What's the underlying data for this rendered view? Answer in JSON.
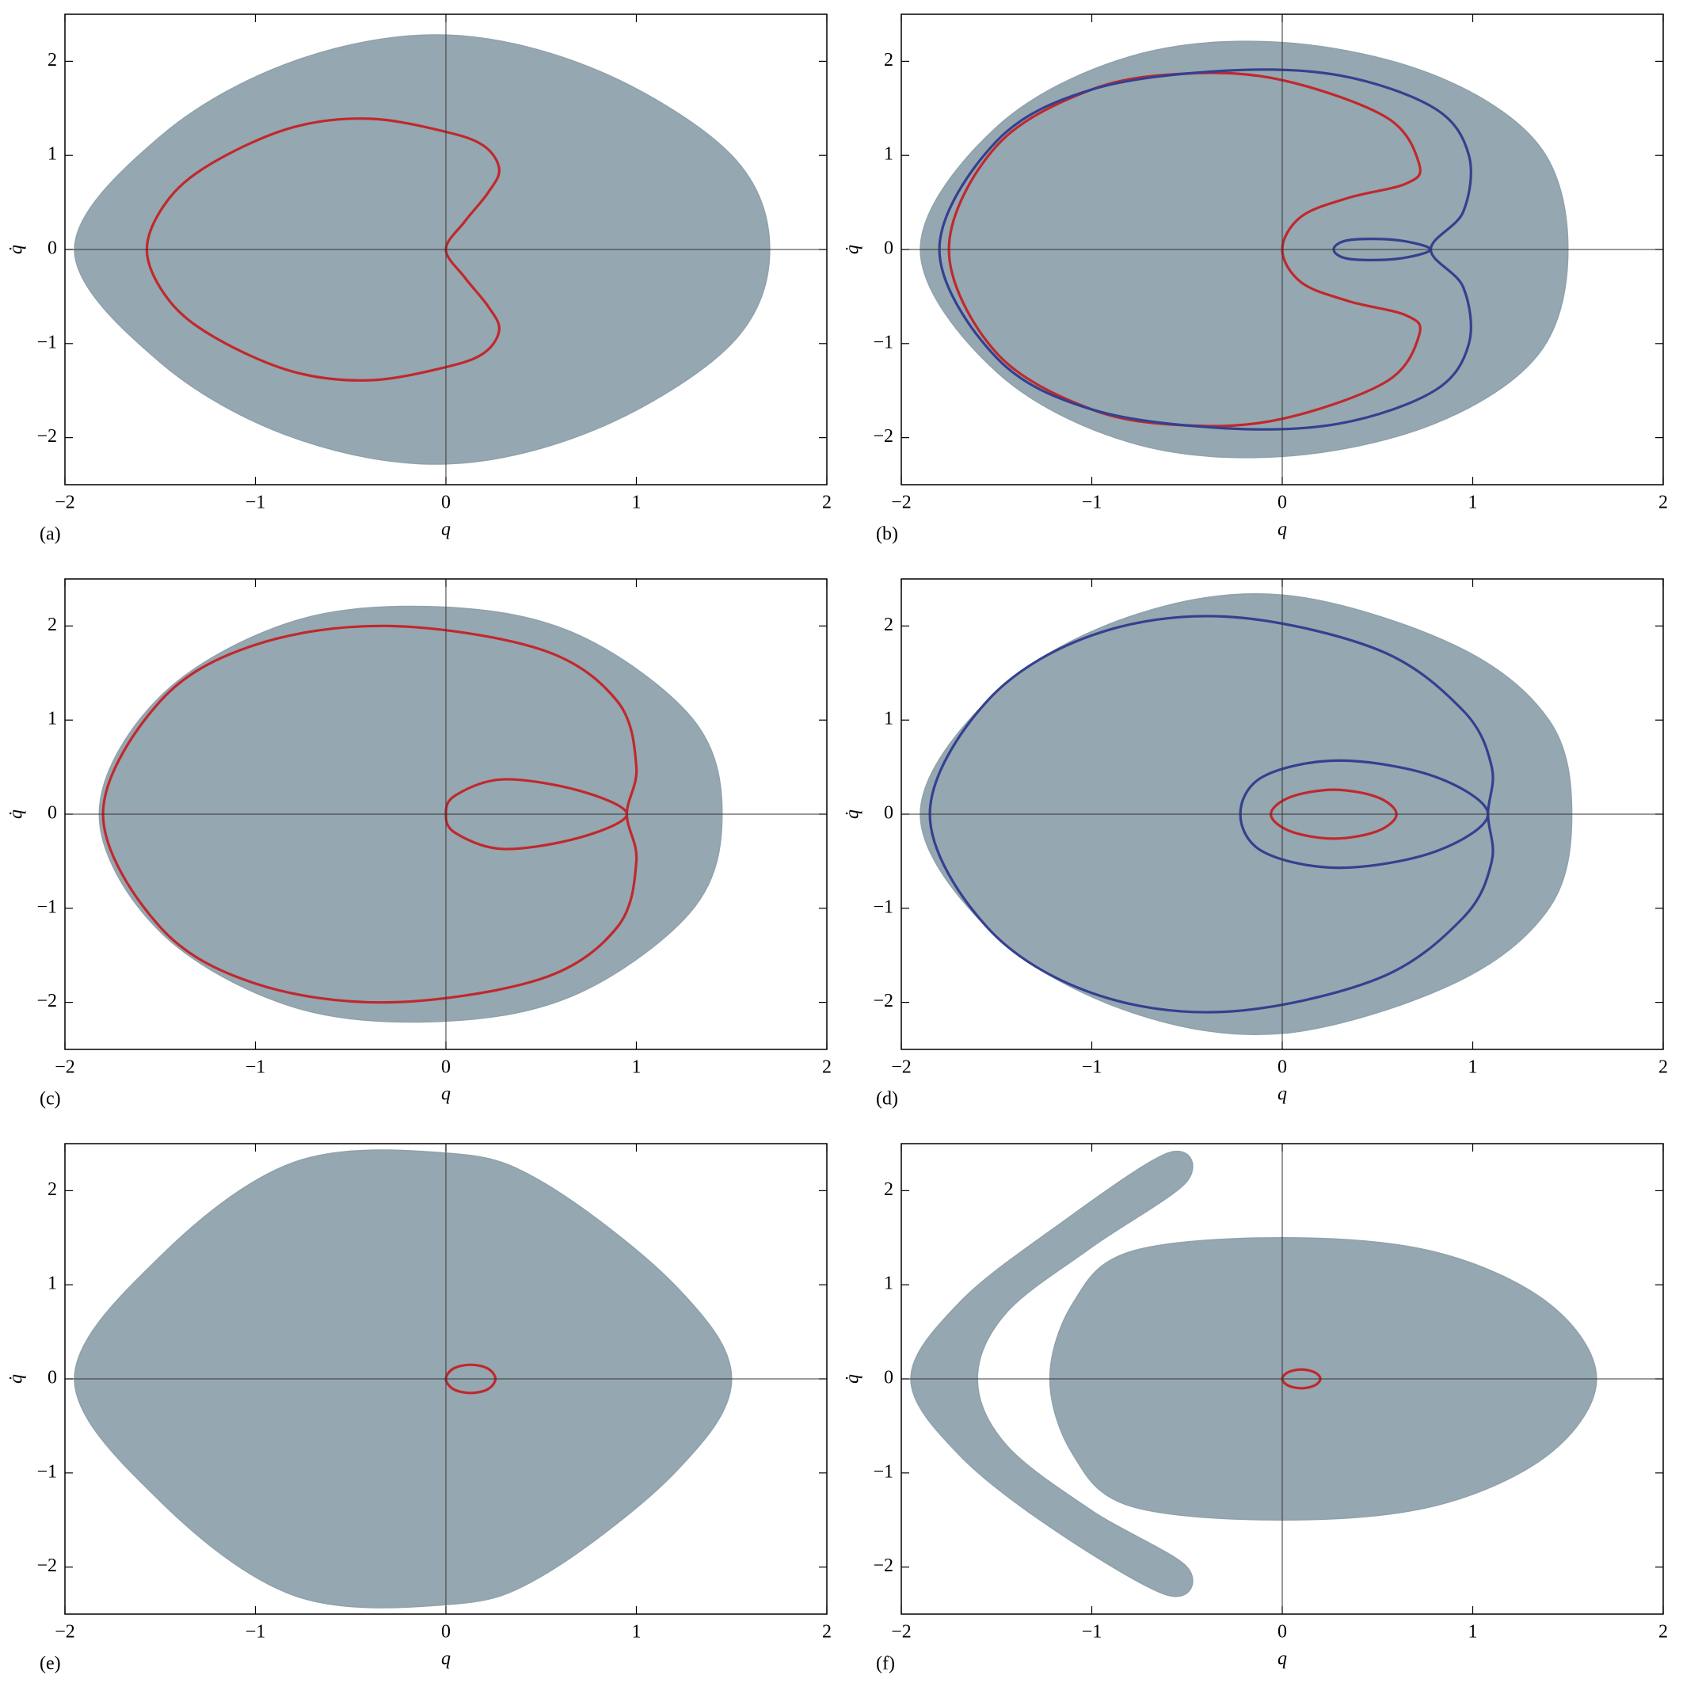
{
  "chart_data": [
    {
      "type": "line",
      "panel_label": "(a)",
      "x_label": "q",
      "y_label": "q̇",
      "xlim": [
        -2,
        2
      ],
      "ylim": [
        -2.5,
        2.5
      ],
      "xticks": [
        {
          "value": -2,
          "label": "−2"
        },
        {
          "value": -1,
          "label": "−1"
        },
        0,
        1,
        2
      ],
      "yticks": [
        {
          "value": -2,
          "label": "−2"
        },
        {
          "value": -1,
          "label": "−1"
        },
        0,
        1,
        2
      ],
      "series": [
        {
          "color": "#8fa2ac",
          "fill": true,
          "x": [
            1.7,
            1.5,
            0.8,
            0,
            -0.8,
            -1.5,
            -1.95,
            -1.5,
            -0.8,
            0,
            0.8,
            1.5,
            1.7
          ],
          "values": [
            0,
            1.0,
            1.9,
            2.28,
            2.0,
            1.2,
            0,
            -1.2,
            -2.0,
            -2.28,
            -1.9,
            -1.0,
            0
          ]
        },
        {
          "color": "#c0282d",
          "x": [
            0,
            0.1,
            0.22,
            0.28,
            0.2,
            0,
            -0.4,
            -0.8,
            -1.2,
            -1.45,
            -1.57,
            -1.45,
            -1.2,
            -0.8,
            -0.4,
            0,
            0.2,
            0.28,
            0.22,
            0.1,
            0
          ],
          "values": [
            0,
            0.3,
            0.6,
            0.85,
            1.1,
            1.25,
            1.39,
            1.3,
            0.95,
            0.55,
            0,
            -0.55,
            -0.95,
            -1.3,
            -1.39,
            -1.25,
            -1.1,
            -0.85,
            -0.6,
            -0.3,
            0
          ]
        }
      ]
    },
    {
      "type": "line",
      "panel_label": "(b)",
      "x_label": "q",
      "y_label": "q̇",
      "xlim": [
        -2,
        2
      ],
      "ylim": [
        -2.5,
        2.5
      ],
      "xticks": [
        {
          "value": -2,
          "label": "−2"
        },
        {
          "value": -1,
          "label": "−1"
        },
        0,
        1,
        2
      ],
      "yticks": [
        {
          "value": -2,
          "label": "−2"
        },
        {
          "value": -1,
          "label": "−1"
        },
        0,
        1,
        2
      ],
      "series": [
        {
          "color": "#8fa2ac",
          "fill": true,
          "x": [
            1.5,
            1.35,
            0.8,
            0,
            -0.8,
            -1.5,
            -1.9,
            -1.5,
            -0.8,
            0,
            0.8,
            1.35,
            1.5
          ],
          "values": [
            0,
            1.1,
            1.85,
            2.2,
            2.05,
            1.3,
            0,
            -1.3,
            -2.05,
            -2.2,
            -1.85,
            -1.1,
            0
          ]
        },
        {
          "color": "#c0282d",
          "x": [
            0,
            0.1,
            0.35,
            0.65,
            0.72,
            0.55,
            0,
            -0.5,
            -1.0,
            -1.5,
            -1.75,
            -1.5,
            -1.0,
            -0.5,
            0,
            0.55,
            0.72,
            0.65,
            0.35,
            0.1,
            0
          ],
          "values": [
            0,
            0.35,
            0.55,
            0.7,
            0.9,
            1.4,
            1.8,
            1.87,
            1.7,
            1.1,
            0,
            -1.1,
            -1.7,
            -1.87,
            -1.8,
            -1.4,
            -0.9,
            -0.7,
            -0.55,
            -0.35,
            0
          ]
        },
        {
          "color": "#34408f",
          "x": [
            0.78,
            0.95,
            0.98,
            0.8,
            0.3,
            -0.3,
            -1.0,
            -1.5,
            -1.8,
            -1.5,
            -1.0,
            -0.3,
            0.3,
            0.8,
            0.98,
            0.95,
            0.78
          ],
          "values": [
            0,
            0.4,
            1.0,
            1.5,
            1.85,
            1.9,
            1.7,
            1.15,
            0,
            -1.15,
            -1.7,
            -1.9,
            -1.85,
            -1.5,
            -1.0,
            -0.4,
            0
          ]
        },
        {
          "color": "#34408f",
          "x": [
            0.78,
            0.6,
            0.35,
            0.27,
            0.35,
            0.6,
            0.78
          ],
          "values": [
            0,
            0.1,
            0.1,
            0,
            -0.1,
            -0.1,
            0
          ]
        }
      ]
    },
    {
      "type": "line",
      "panel_label": "(c)",
      "x_label": "q",
      "y_label": "q̇",
      "xlim": [
        -2,
        2
      ],
      "ylim": [
        -2.5,
        2.5
      ],
      "xticks": [
        {
          "value": -2,
          "label": "−2"
        },
        {
          "value": -1,
          "label": "−1"
        },
        0,
        1,
        2
      ],
      "yticks": [
        {
          "value": -2,
          "label": "−2"
        },
        {
          "value": -1,
          "label": "−1"
        },
        0,
        1,
        2
      ],
      "series": [
        {
          "color": "#8fa2ac",
          "fill": true,
          "x": [
            1.45,
            1.3,
            0.7,
            0,
            -0.8,
            -1.5,
            -1.82,
            -1.5,
            -0.8,
            0,
            0.7,
            1.3,
            1.45
          ],
          "values": [
            0,
            1.0,
            1.9,
            2.2,
            2.05,
            1.25,
            0,
            -1.25,
            -2.05,
            -2.2,
            -1.9,
            -1.0,
            0
          ]
        },
        {
          "color": "#c0282d",
          "x": [
            0.95,
            1.0,
            0.9,
            0.5,
            -0.3,
            -1.0,
            -1.5,
            -1.8,
            -1.5,
            -1.0,
            -0.3,
            0.5,
            0.9,
            1.0,
            0.95
          ],
          "values": [
            0,
            0.5,
            1.2,
            1.75,
            2.0,
            1.8,
            1.2,
            0,
            -1.2,
            -1.8,
            -2.0,
            -1.75,
            -1.2,
            -0.5,
            0
          ]
        },
        {
          "color": "#c0282d",
          "x": [
            0.95,
            0.7,
            0.3,
            0.05,
            0,
            0.05,
            0.3,
            0.7,
            0.95
          ],
          "values": [
            0,
            0.25,
            0.37,
            0.2,
            0,
            -0.2,
            -0.37,
            -0.25,
            0
          ]
        }
      ]
    },
    {
      "type": "line",
      "panel_label": "(d)",
      "x_label": "q",
      "y_label": "q̇",
      "xlim": [
        -2,
        2
      ],
      "ylim": [
        -2.5,
        2.5
      ],
      "xticks": [
        {
          "value": -2,
          "label": "−2"
        },
        {
          "value": -1,
          "label": "−1"
        },
        0,
        1,
        2
      ],
      "yticks": [
        {
          "value": -2,
          "label": "−2"
        },
        {
          "value": -1,
          "label": "−1"
        },
        0,
        1,
        2
      ],
      "series": [
        {
          "color": "#8fa2ac",
          "fill": true,
          "x": [
            1.52,
            1.4,
            0.9,
            0,
            -0.8,
            -1.5,
            -1.9,
            -1.5,
            -0.8,
            0,
            0.9,
            1.4,
            1.52
          ],
          "values": [
            0,
            1.0,
            1.8,
            2.33,
            2.1,
            1.3,
            0,
            -1.3,
            -2.1,
            -2.33,
            -1.8,
            -1.0,
            0
          ]
        },
        {
          "color": "#34408f",
          "x": [
            1.08,
            1.1,
            0.95,
            0.5,
            -0.3,
            -1.0,
            -1.55,
            -1.85,
            -1.55,
            -1.0,
            -0.3,
            0.5,
            0.95,
            1.1,
            1.08
          ],
          "values": [
            0,
            0.5,
            1.1,
            1.75,
            2.1,
            1.9,
            1.2,
            0,
            -1.2,
            -1.9,
            -2.1,
            -1.75,
            -1.1,
            -0.5,
            0
          ]
        },
        {
          "color": "#34408f",
          "x": [
            1.08,
            0.8,
            0.3,
            -0.1,
            -0.22,
            -0.1,
            0.3,
            0.8,
            1.08
          ],
          "values": [
            0,
            0.4,
            0.57,
            0.4,
            0,
            -0.4,
            -0.57,
            -0.4,
            0
          ]
        },
        {
          "color": "#c0282d",
          "x": [
            0.6,
            0.5,
            0.27,
            0.04,
            -0.06,
            0.04,
            0.27,
            0.5,
            0.6
          ],
          "values": [
            0,
            0.18,
            0.26,
            0.18,
            0,
            -0.18,
            -0.26,
            -0.18,
            0
          ]
        }
      ]
    },
    {
      "type": "line",
      "panel_label": "(e)",
      "x_label": "q",
      "y_label": "q̇",
      "xlim": [
        -2,
        2
      ],
      "ylim": [
        -2.5,
        2.5
      ],
      "xticks": [
        {
          "value": -2,
          "label": "−2"
        },
        {
          "value": -1,
          "label": "−1"
        },
        0,
        1,
        2
      ],
      "yticks": [
        {
          "value": -2,
          "label": "−2"
        },
        {
          "value": -1,
          "label": "−1"
        },
        0,
        1,
        2
      ],
      "series": [
        {
          "color": "#8fa2ac",
          "fill": true,
          "x": [
            1.5,
            1.2,
            0.5,
            0,
            -0.8,
            -1.5,
            -1.95,
            -1.5,
            -0.8,
            0,
            0.5,
            1.2,
            1.5
          ],
          "values": [
            0,
            1.0,
            2.1,
            2.4,
            2.3,
            1.3,
            0,
            -1.3,
            -2.3,
            -2.4,
            -2.1,
            -1.0,
            0
          ]
        },
        {
          "color": "#c0282d",
          "x": [
            0.26,
            0.22,
            0.13,
            0.04,
            0,
            0.04,
            0.13,
            0.22,
            0.26
          ],
          "values": [
            0,
            0.11,
            0.15,
            0.11,
            0,
            -0.11,
            -0.15,
            -0.11,
            0
          ]
        }
      ]
    },
    {
      "type": "line",
      "panel_label": "(f)",
      "x_label": "q",
      "y_label": "q̇",
      "xlim": [
        -2,
        2
      ],
      "ylim": [
        -2.5,
        2.5
      ],
      "xticks": [
        {
          "value": -2,
          "label": "−2"
        },
        {
          "value": -1,
          "label": "−1"
        },
        0,
        1,
        2
      ],
      "yticks": [
        {
          "value": -2,
          "label": "−2"
        },
        {
          "value": -1,
          "label": "−1"
        },
        0,
        1,
        2
      ],
      "series": [
        {
          "color": "#8fa2ac",
          "fill": true,
          "x": [
            1.65,
            1.4,
            0.8,
            0,
            -0.8,
            -1.1,
            -1.22,
            -1.1,
            -0.8,
            0,
            0.8,
            1.4,
            1.65
          ],
          "values": [
            0,
            0.8,
            1.35,
            1.5,
            1.35,
            0.8,
            0,
            -0.8,
            -1.35,
            -1.5,
            -1.35,
            -0.8,
            0
          ]
        },
        {
          "color": "#8fa2ac",
          "fill": true,
          "x": [
            -0.6,
            -1.2,
            -1.7,
            -1.95,
            -1.7,
            -1.2,
            -0.6,
            -0.5,
            -1.0,
            -1.45,
            -1.6,
            -1.45,
            -1.0,
            -0.5,
            -0.6
          ],
          "values": [
            2.4,
            1.6,
            0.8,
            0,
            -0.8,
            -1.6,
            -2.3,
            -2.0,
            -1.4,
            -0.7,
            0,
            0.7,
            1.4,
            2.1,
            2.4
          ]
        },
        {
          "color": "#c0282d",
          "x": [
            0.2,
            0.17,
            0.1,
            0.03,
            0,
            0.03,
            0.1,
            0.17,
            0.2
          ],
          "values": [
            0,
            0.07,
            0.1,
            0.07,
            0,
            -0.07,
            -0.1,
            -0.07,
            0
          ]
        }
      ]
    }
  ]
}
